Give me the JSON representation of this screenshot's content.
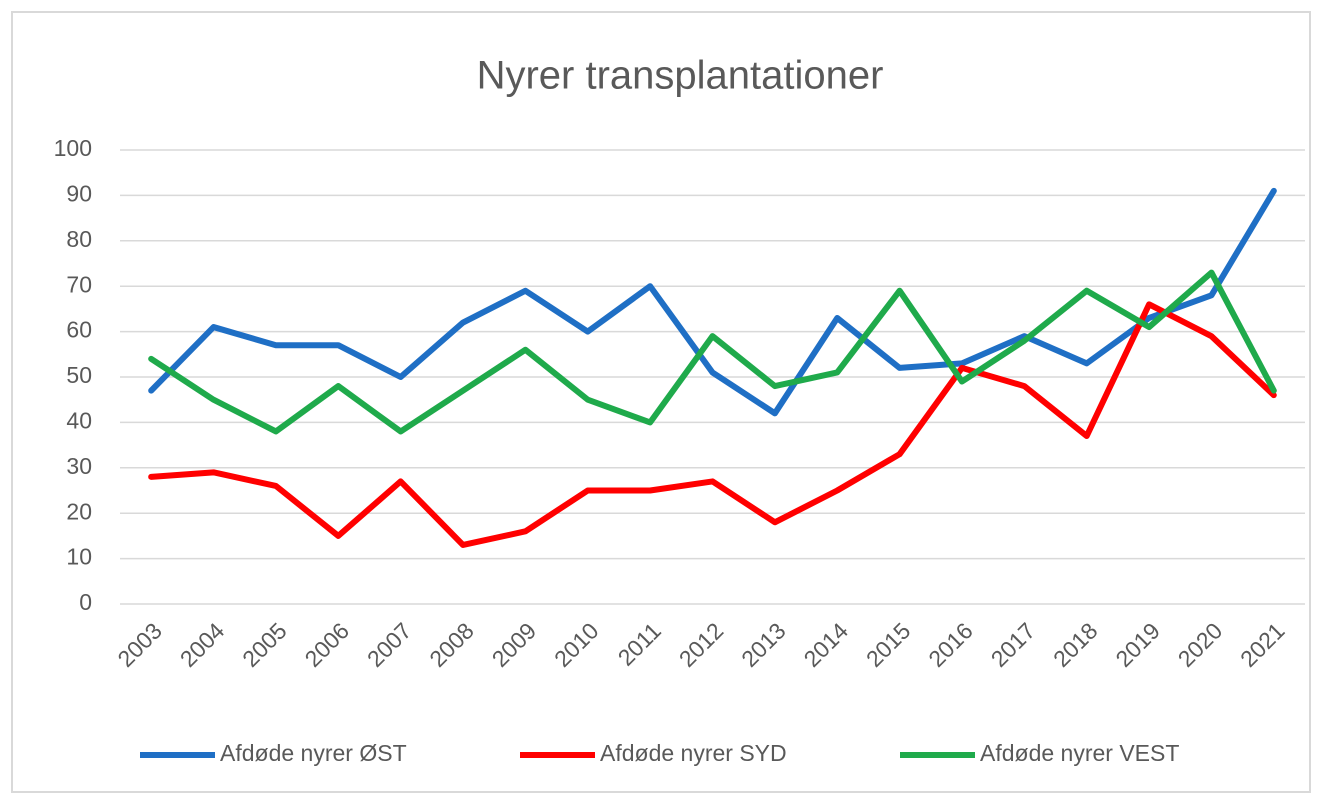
{
  "chart_data": {
    "type": "line",
    "title": "Nyrer transplantationer",
    "categories": [
      "2003",
      "2004",
      "2005",
      "2006",
      "2007",
      "2008",
      "2009",
      "2010",
      "2011",
      "2012",
      "2013",
      "2014",
      "2015",
      "2016",
      "2017",
      "2018",
      "2019",
      "2020",
      "2021"
    ],
    "series": [
      {
        "name": "Afdøde nyrer ØST",
        "color": "#1f6fc5",
        "values": [
          47,
          61,
          57,
          57,
          50,
          62,
          69,
          60,
          70,
          51,
          42,
          63,
          52,
          53,
          59,
          53,
          63,
          68,
          91
        ]
      },
      {
        "name": "Afdøde nyrer SYD",
        "color": "#ff0000",
        "values": [
          28,
          29,
          26,
          15,
          27,
          13,
          16,
          25,
          25,
          27,
          18,
          25,
          33,
          52,
          48,
          37,
          66,
          59,
          46
        ]
      },
      {
        "name": "Afdøde nyrer VEST",
        "color": "#1faa4b",
        "values": [
          54,
          45,
          38,
          48,
          38,
          47,
          56,
          45,
          40,
          59,
          48,
          51,
          69,
          49,
          58,
          69,
          61,
          73,
          47
        ]
      }
    ],
    "ylim": [
      0,
      100
    ],
    "yticks": [
      0,
      10,
      20,
      30,
      40,
      50,
      60,
      70,
      80,
      90,
      100
    ],
    "grid": true,
    "legend": "bottom"
  }
}
